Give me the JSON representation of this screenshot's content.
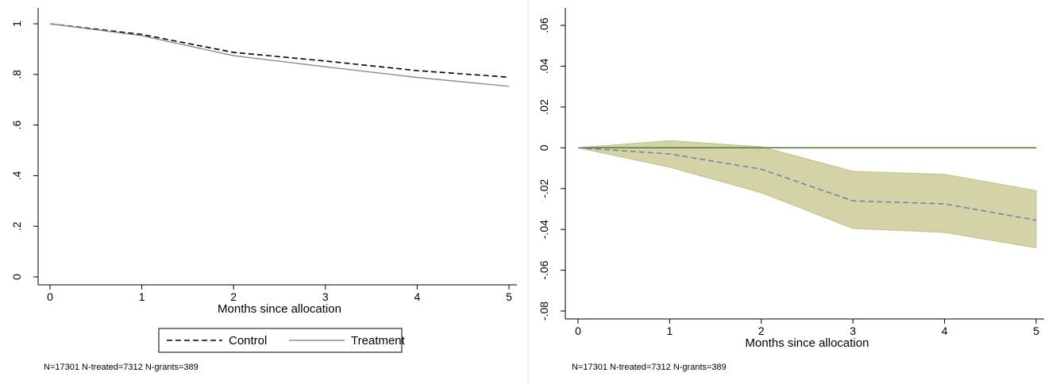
{
  "chart_data": [
    {
      "type": "line",
      "x": [
        0,
        1,
        2,
        3,
        4,
        5
      ],
      "xlabel": "Months since allocation",
      "ylabel": "",
      "xlim": [
        0,
        5
      ],
      "ylim": [
        0,
        1
      ],
      "x_ticks": [
        "0",
        "1",
        "2",
        "3",
        "4",
        "5"
      ],
      "y_ticks": [
        {
          "value": 0,
          "label": "0"
        },
        {
          "value": 0.2,
          "label": ".2"
        },
        {
          "value": 0.4,
          "label": ".4"
        },
        {
          "value": 0.6,
          "label": ".6"
        },
        {
          "value": 0.8,
          "label": ".8"
        },
        {
          "value": 1,
          "label": "1"
        }
      ],
      "grid": false,
      "legend_position": "bottom",
      "series": [
        {
          "name": "Control",
          "values": [
            1.0,
            0.958,
            0.887,
            0.853,
            0.815,
            0.789
          ],
          "color": "#000000",
          "style": "dashed"
        },
        {
          "name": "Treatment",
          "values": [
            1.0,
            0.953,
            0.874,
            0.83,
            0.788,
            0.753
          ],
          "color": "#8c8c8c",
          "style": "solid"
        }
      ],
      "note": "N=17301 N-treated=7312 N-grants=389"
    },
    {
      "type": "line",
      "x": [
        0,
        1,
        2,
        3,
        4,
        5
      ],
      "xlabel": "Months since allocation",
      "ylabel": "",
      "xlim": [
        0,
        5
      ],
      "ylim": [
        -0.08,
        0.06
      ],
      "x_ticks": [
        "0",
        "1",
        "2",
        "3",
        "4",
        "5"
      ],
      "y_ticks": [
        {
          "value": -0.08,
          "label": "-.08"
        },
        {
          "value": -0.06,
          "label": "-.06"
        },
        {
          "value": -0.04,
          "label": "-.04"
        },
        {
          "value": -0.02,
          "label": "-.02"
        },
        {
          "value": 0,
          "label": "0"
        },
        {
          "value": 0.02,
          "label": ".02"
        },
        {
          "value": 0.04,
          "label": ".04"
        },
        {
          "value": 0.06,
          "label": ".06"
        }
      ],
      "grid": false,
      "series": [
        {
          "name": "",
          "values": [
            0.0,
            -0.003,
            -0.0105,
            -0.026,
            -0.0275,
            -0.0355
          ],
          "color": "#6f86a6",
          "style": "dashed"
        }
      ],
      "confidence_band": {
        "lower": [
          0.0,
          -0.0095,
          -0.022,
          -0.0395,
          -0.0415,
          -0.049
        ],
        "upper": [
          0.0,
          0.0035,
          0.0005,
          -0.0115,
          -0.013,
          -0.021
        ],
        "color": "#d4d3a8"
      },
      "reference_line": {
        "value": 0,
        "color": "#4d7a3a"
      },
      "note": "N=17301 N-treated=7312 N-grants=389"
    }
  ]
}
